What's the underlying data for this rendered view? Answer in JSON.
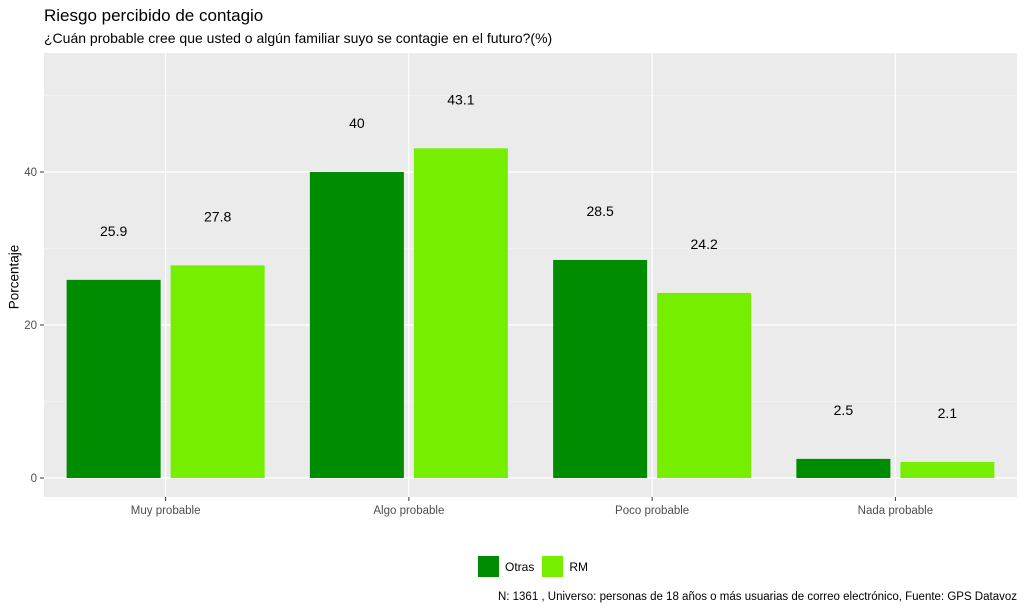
{
  "colors": {
    "panel": "#EBEBEB",
    "grid_major": "#FFFFFF",
    "otras": "#008C00",
    "rm": "#76EE00"
  },
  "chart_data": {
    "type": "bar",
    "title": "Riesgo percibido de contagio",
    "subtitle": "¿Cuán probable cree que usted o algún familiar suyo se contagie en el futuro?(%)",
    "ylabel": "Porcentaje",
    "xlabel": "",
    "categories": [
      "Muy probable",
      "Algo probable",
      "Poco probable",
      "Nada probable"
    ],
    "series": [
      {
        "name": "Otras",
        "color": "#008C00",
        "values": [
          25.9,
          40,
          28.5,
          2.5
        ]
      },
      {
        "name": "RM",
        "color": "#76EE00",
        "values": [
          27.8,
          43.1,
          24.2,
          2.1
        ]
      }
    ],
    "value_labels": [
      [
        "25.9",
        "40",
        "28.5",
        "2.5"
      ],
      [
        "27.8",
        "43.1",
        "24.2",
        "2.1"
      ]
    ],
    "yticks": [
      0,
      20,
      40
    ],
    "ylim": [
      -2.5,
      55
    ],
    "grid": true,
    "legend_position": "bottom",
    "caption": "N: 1361 , Universo: personas de 18 años o más usuarias de correo electrónico, Fuente: GPS Datavoz"
  }
}
